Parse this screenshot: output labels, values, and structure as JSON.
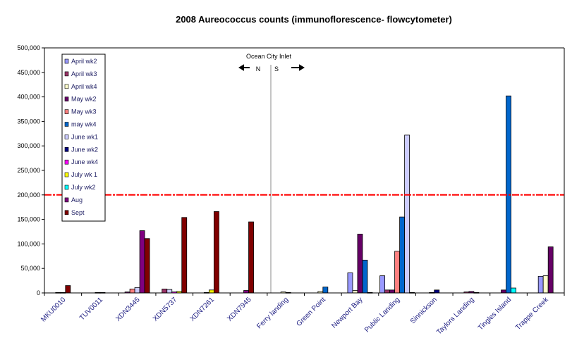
{
  "chart_data": {
    "type": "bar",
    "title": "2008 Aureococcus counts (immunoflorescence- flowcytometer)",
    "xlabel": "",
    "ylabel": "",
    "ylim": [
      0,
      500000
    ],
    "yticks": [
      "0",
      "50,000",
      "100,000",
      "150,000",
      "200,000",
      "250,000",
      "300,000",
      "350,000",
      "400,000",
      "450,000",
      "500,000"
    ],
    "threshold": 200000,
    "threshold_color": "#ff0000",
    "annotation": {
      "title": "Ocean City Inlet",
      "north": "N",
      "south": "S"
    },
    "legend_position": "top-left",
    "categories": [
      "MKU0010",
      "TUV0011",
      "XDN3445",
      "XDN5737",
      "XDN7261",
      "XDN7945",
      "Ferry landing",
      "Green Point",
      "Newport Bay",
      "Public Landing",
      "Sinnickson",
      "Taylors Landing",
      "Tingles Island",
      "Trappe Creek"
    ],
    "series": [
      {
        "name": "April wk2",
        "color": "#9999ff",
        "values": [
          1000,
          null,
          null,
          null,
          null,
          null,
          null,
          null,
          41000,
          35000,
          null,
          null,
          null,
          34000
        ]
      },
      {
        "name": "April wk3",
        "color": "#993366",
        "values": [
          null,
          null,
          null,
          8000,
          null,
          null,
          null,
          null,
          null,
          6000,
          null,
          2000,
          null,
          null
        ]
      },
      {
        "name": "April wk4",
        "color": "#ffffcc",
        "values": [
          null,
          1000,
          null,
          null,
          null,
          null,
          2000,
          3000,
          5000,
          null,
          null,
          null,
          null,
          35000
        ]
      },
      {
        "name": "May wk2",
        "color": "#660066",
        "values": [
          null,
          null,
          2000,
          null,
          null,
          null,
          null,
          null,
          120000,
          6000,
          1000,
          3000,
          6000,
          94000
        ]
      },
      {
        "name": "May wk3",
        "color": "#ff8080",
        "values": [
          null,
          null,
          8000,
          null,
          null,
          null,
          null,
          null,
          null,
          85000,
          null,
          null,
          null,
          null
        ]
      },
      {
        "name": "may wk4",
        "color": "#0066cc",
        "values": [
          null,
          null,
          null,
          null,
          null,
          null,
          null,
          12000,
          67000,
          155000,
          null,
          null,
          402000,
          null
        ]
      },
      {
        "name": "June wk1",
        "color": "#ccccff",
        "values": [
          1000,
          1000,
          11000,
          7000,
          null,
          null,
          1000,
          null,
          null,
          322000,
          null,
          null,
          null,
          null
        ]
      },
      {
        "name": "June wk2",
        "color": "#000080",
        "values": [
          null,
          null,
          null,
          null,
          1000,
          null,
          null,
          null,
          1000,
          null,
          6000,
          1000,
          null,
          null
        ]
      },
      {
        "name": "June wk4",
        "color": "#ff00ff",
        "values": [
          null,
          null,
          null,
          2000,
          null,
          null,
          null,
          null,
          null,
          null,
          null,
          null,
          null,
          null
        ]
      },
      {
        "name": "July wk 1",
        "color": "#ffff00",
        "values": [
          null,
          null,
          null,
          3000,
          6000,
          null,
          null,
          null,
          null,
          null,
          null,
          null,
          null,
          null
        ]
      },
      {
        "name": "July wk2",
        "color": "#00ffff",
        "values": [
          null,
          null,
          null,
          null,
          null,
          null,
          null,
          null,
          null,
          null,
          null,
          null,
          10000,
          null
        ]
      },
      {
        "name": "Aug",
        "color": "#800080",
        "values": [
          null,
          null,
          127000,
          null,
          null,
          5000,
          null,
          null,
          null,
          null,
          null,
          null,
          null,
          null
        ]
      },
      {
        "name": "Sept",
        "color": "#800000",
        "values": [
          15000,
          null,
          111000,
          154000,
          166000,
          145000,
          null,
          null,
          null,
          1000,
          null,
          null,
          null,
          null
        ]
      }
    ]
  }
}
